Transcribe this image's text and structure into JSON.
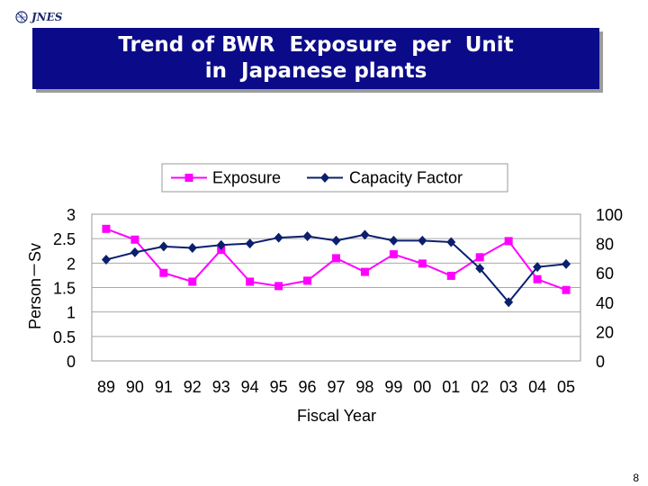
{
  "header": {
    "logo_text": "JNES",
    "title_lines": [
      "Trend of BWR  Exposure  per  Unit",
      "in  Japanese plants"
    ]
  },
  "page_number": "8",
  "colors": {
    "title_bg": "#0b0b8a",
    "exposure": "#ff00ff",
    "capacity": "#0b1f6e"
  },
  "chart_data": {
    "type": "line",
    "title": "",
    "xlabel": "Fiscal Year",
    "ylabel": "Person－Sv",
    "categories": [
      "89",
      "90",
      "91",
      "92",
      "93",
      "94",
      "95",
      "96",
      "97",
      "98",
      "99",
      "00",
      "01",
      "02",
      "03",
      "04",
      "05"
    ],
    "legend_position": "top",
    "grid": true,
    "y_left": {
      "ticks": [
        "0",
        "0.5",
        "1",
        "1.5",
        "2",
        "2.5",
        "3"
      ],
      "range": [
        0,
        3
      ]
    },
    "y_right": {
      "ticks": [
        "0",
        "20",
        "40",
        "60",
        "80",
        "100"
      ],
      "range": [
        0,
        100
      ]
    },
    "series": [
      {
        "name": "Exposure",
        "axis": "left",
        "marker": "square",
        "values": [
          2.7,
          2.48,
          1.8,
          1.62,
          2.27,
          1.62,
          1.53,
          1.64,
          2.1,
          1.82,
          2.18,
          1.99,
          1.74,
          2.12,
          2.45,
          1.67,
          1.45
        ]
      },
      {
        "name": "Capacity  Factor",
        "axis": "right",
        "marker": "diamond",
        "values": [
          69,
          74,
          78,
          77,
          79,
          80,
          84,
          85,
          82,
          86,
          82,
          82,
          81,
          63,
          40,
          64,
          66
        ]
      }
    ]
  }
}
